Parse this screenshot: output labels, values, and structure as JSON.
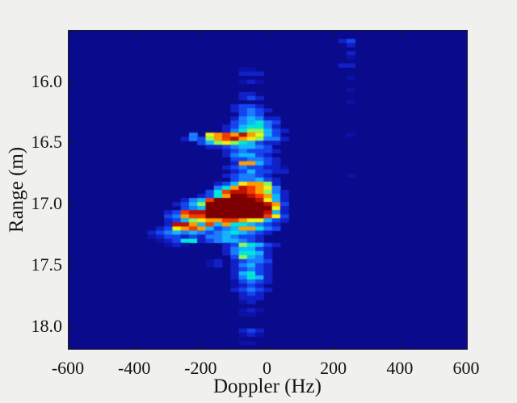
{
  "figure": {
    "background": "#f0f0ee",
    "plot_background": "#0a0a8c",
    "axis_color": "#1c1c1c",
    "tick_label_color": "#141414"
  },
  "chart_data": {
    "type": "heatmap",
    "title": "",
    "xlabel": "Doppler (Hz)",
    "ylabel": "Range (m)",
    "xlim": [
      -600,
      600
    ],
    "ylim_top_to_bottom": [
      15.58,
      18.18
    ],
    "x_ticks": [
      -600,
      -400,
      -200,
      0,
      200,
      400,
      600
    ],
    "x_tick_labels": [
      "-600",
      "-400",
      "-200",
      "0",
      "200",
      "400",
      "600"
    ],
    "y_ticks": [
      16.0,
      16.5,
      17.0,
      17.5,
      18.0
    ],
    "y_tick_labels": [
      "16.0",
      "16.5",
      "17.0",
      "17.5",
      "18.0"
    ],
    "colormap": "jet",
    "legend": "none",
    "grid_lines": false,
    "tick_style": "inward ticks mirrored on all four box sides",
    "features": [
      {
        "name": "main-target-peak",
        "doppler_hz": -60,
        "range_m": 17.0,
        "intensity": "peak (dark red)"
      },
      {
        "name": "left-arm-cluster",
        "doppler_hz": [
          -355,
          -180
        ],
        "range_m": [
          17.05,
          17.3
        ],
        "intensity": "medium, red streak near 17.2 m"
      },
      {
        "name": "upper-arm-cluster",
        "doppler_hz": [
          -220,
          -30
        ],
        "range_m": [
          16.4,
          16.55
        ],
        "intensity": "high (red/orange streaks)"
      },
      {
        "name": "zero-doppler-stripe",
        "doppler_hz": [
          -100,
          25
        ],
        "range_m": [
          15.62,
          17.8
        ],
        "intensity": "low-medium scattered"
      },
      {
        "name": "faint-column",
        "doppler_hz": 250,
        "range_m": [
          15.65,
          16.9
        ],
        "intensity": "very faint blue"
      }
    ],
    "grid": {
      "cols": 49,
      "rows": 78,
      "x0": -612.5,
      "dx": 25,
      "y0": 15.58,
      "dy": 0.033333
    },
    "palette": {
      "1": "#0d12a6",
      "2": "#1220c8",
      "3": "#1545ee",
      "4": "#1b7cff",
      "5": "#12b6ff",
      "6": "#00e6d8",
      "7": "#86f95e",
      "8": "#f5ef0e",
      "9": "#ff9d00",
      "a": "#f23c00",
      "b": "#c01000",
      "c": "#800000"
    },
    "intensity_encoding": "chars 1 (faint) through c (peak); '.' = background",
    "cells": [
      {
        "r": 2,
        "c": 33,
        "s": "23"
      },
      {
        "r": 3,
        "c": 34,
        "s": "2"
      },
      {
        "r": 5,
        "c": 34,
        "s": "2"
      },
      {
        "r": 6,
        "c": 34,
        "s": "1"
      },
      {
        "r": 8,
        "c": 33,
        "s": "22"
      },
      {
        "r": 9,
        "c": 21,
        "s": "11"
      },
      {
        "r": 10,
        "c": 21,
        "s": "222"
      },
      {
        "r": 11,
        "c": 34,
        "s": "1"
      },
      {
        "r": 12,
        "c": 21,
        "s": "121"
      },
      {
        "r": 14,
        "c": 34,
        "s": "1"
      },
      {
        "r": 15,
        "c": 21,
        "s": "22"
      },
      {
        "r": 16,
        "c": 21,
        "s": "232"
      },
      {
        "r": 17,
        "c": 34,
        "s": "1"
      },
      {
        "r": 18,
        "c": 20,
        "s": "2332"
      },
      {
        "r": 19,
        "c": 20,
        "s": "23432"
      },
      {
        "r": 20,
        "c": 21,
        "s": "343"
      },
      {
        "r": 21,
        "c": 20,
        "s": "245422"
      },
      {
        "r": 22,
        "c": 20,
        "s": "345643"
      },
      {
        "r": 23,
        "c": 19,
        "s": "2356642"
      },
      {
        "r": 24,
        "c": 19,
        "s": "24677532"
      },
      {
        "r": 25,
        "c": 15,
        "s": "4.89a9b9853"
      },
      {
        "r": 25,
        "c": 34,
        "s": "1"
      },
      {
        "r": 26,
        "c": 14,
        "s": "24379ab987442"
      },
      {
        "r": 27,
        "c": 16,
        "s": "3578765322"
      },
      {
        "r": 28,
        "c": 17,
        "s": "22345543"
      },
      {
        "r": 29,
        "c": 19,
        "s": "2343332"
      },
      {
        "r": 30,
        "c": 19,
        "s": "245532"
      },
      {
        "r": 31,
        "c": 20,
        "s": "334432"
      },
      {
        "r": 32,
        "c": 20,
        "s": "299532"
      },
      {
        "r": 33,
        "c": 19,
        "s": "23433221"
      },
      {
        "r": 34,
        "c": 20,
        "s": "2353322"
      },
      {
        "r": 35,
        "c": 19,
        "s": "234432"
      },
      {
        "r": 35,
        "c": 34,
        "s": "1"
      },
      {
        "r": 36,
        "c": 20,
        "s": "344532"
      },
      {
        "r": 37,
        "c": 18,
        "s": "23589972"
      },
      {
        "r": 38,
        "c": 18,
        "s": "469ba984"
      },
      {
        "r": 39,
        "c": 17,
        "s": "36abba9742"
      },
      {
        "r": 40,
        "c": 16,
        "s": "2369ccba952"
      },
      {
        "r": 41,
        "c": 14,
        "s": "245acccccb852"
      },
      {
        "r": 42,
        "c": 13,
        "s": "2357cccccccb93"
      },
      {
        "r": 43,
        "c": 14,
        "s": "345cccccccc82"
      },
      {
        "r": 44,
        "c": 12,
        "s": "23abbcccccccb52"
      },
      {
        "r": 45,
        "c": 12,
        "s": "349aaccccccca83"
      },
      {
        "r": 46,
        "c": 12,
        "s": "2357899aa988532"
      },
      {
        "r": 47,
        "c": 12,
        "s": "2bb95a59665432"
      },
      {
        "r": 48,
        "c": 11,
        "s": "2389a9534599643"
      },
      {
        "r": 49,
        "c": 10,
        "s": "234545434565432"
      },
      {
        "r": 50,
        "c": 10,
        "s": "12332324454332"
      },
      {
        "r": 51,
        "c": 11,
        "s": "1236623455432"
      },
      {
        "r": 52,
        "c": 12,
        "s": "121....2376532"
      },
      {
        "r": 53,
        "c": 19,
        "s": "245532"
      },
      {
        "r": 54,
        "c": 19,
        "s": "246652"
      },
      {
        "r": 55,
        "c": 20,
        "s": "37542"
      },
      {
        "r": 56,
        "c": 17,
        "s": "12"
      },
      {
        "r": 56,
        "c": 20,
        "s": "23443"
      },
      {
        "r": 57,
        "c": 17,
        "s": "12"
      },
      {
        "r": 57,
        "c": 20,
        "s": "24532"
      },
      {
        "r": 58,
        "c": 20,
        "s": "23432"
      },
      {
        "r": 59,
        "c": 20,
        "s": "25632"
      },
      {
        "r": 60,
        "c": 20,
        "s": "24652"
      },
      {
        "r": 61,
        "c": 20,
        "s": "13432"
      },
      {
        "r": 62,
        "c": 20,
        "s": "1232"
      },
      {
        "r": 63,
        "c": 20,
        "s": "23432"
      },
      {
        "r": 64,
        "c": 21,
        "s": "232"
      },
      {
        "r": 65,
        "c": 21,
        "s": "222"
      },
      {
        "r": 66,
        "c": 21,
        "s": "12"
      },
      {
        "r": 68,
        "c": 21,
        "s": "121"
      },
      {
        "r": 69,
        "c": 21,
        "s": "11"
      },
      {
        "r": 73,
        "c": 21,
        "s": "232"
      },
      {
        "r": 74,
        "c": 21,
        "s": "121"
      },
      {
        "r": 76,
        "c": 21,
        "s": "11"
      }
    ]
  }
}
